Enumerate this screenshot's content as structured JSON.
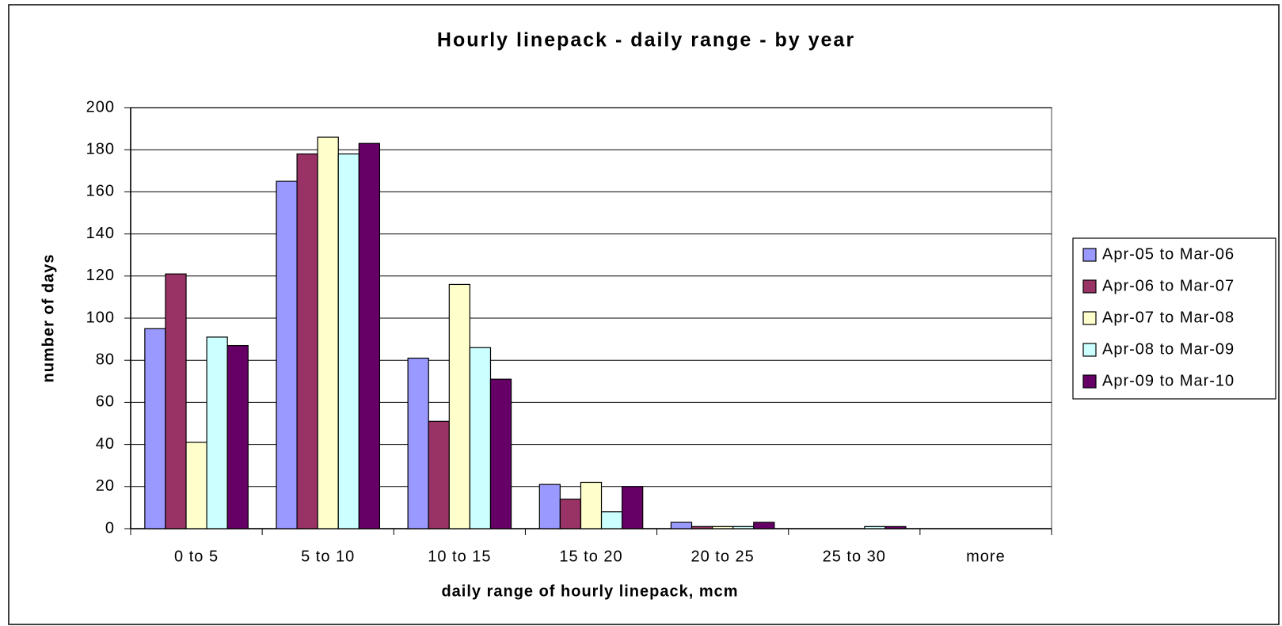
{
  "chart_data": {
    "type": "bar",
    "title": "Hourly linepack - daily range - by year",
    "x_label": "daily range of hourly linepack, mcm",
    "y_label": "number of days",
    "categories": [
      "0 to 5",
      "5 to 10",
      "10 to 15",
      "15 to 20",
      "20 to 25",
      "25 to 30",
      "more"
    ],
    "series": [
      {
        "name": "Apr-05 to Mar-06",
        "color": "#9999ff",
        "values": [
          95,
          165,
          81,
          21,
          3,
          0,
          0
        ]
      },
      {
        "name": "Apr-06 to Mar-07",
        "color": "#993366",
        "values": [
          121,
          178,
          51,
          14,
          1,
          0,
          0
        ]
      },
      {
        "name": "Apr-07 to Mar-08",
        "color": "#ffffcc",
        "values": [
          41,
          186,
          116,
          22,
          1,
          0,
          0
        ]
      },
      {
        "name": "Apr-08 to Mar-09",
        "color": "#ccffff",
        "values": [
          91,
          178,
          86,
          8,
          1,
          1,
          0
        ]
      },
      {
        "name": "Apr-09 to Mar-10",
        "color": "#660066",
        "values": [
          87,
          183,
          71,
          20,
          3,
          1,
          0
        ]
      }
    ],
    "ylim": [
      0,
      200
    ],
    "yticks": [
      0,
      20,
      40,
      60,
      80,
      100,
      120,
      140,
      160,
      180,
      200
    ],
    "grid": true,
    "legend": "right"
  }
}
